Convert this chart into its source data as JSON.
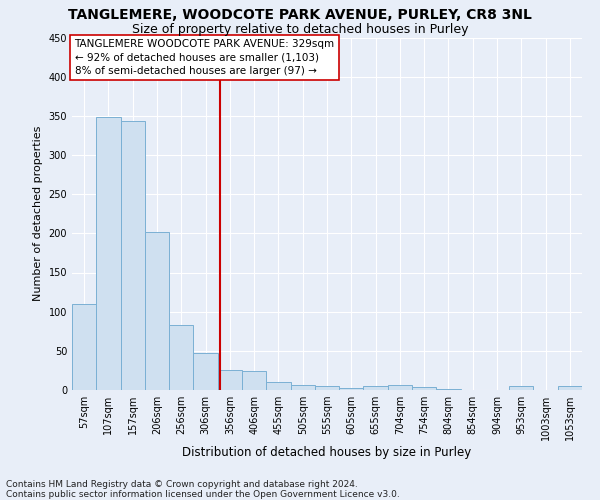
{
  "title": "TANGLEMERE, WOODCOTE PARK AVENUE, PURLEY, CR8 3NL",
  "subtitle": "Size of property relative to detached houses in Purley",
  "xlabel": "Distribution of detached houses by size in Purley",
  "ylabel": "Number of detached properties",
  "bar_labels": [
    "57sqm",
    "107sqm",
    "157sqm",
    "206sqm",
    "256sqm",
    "306sqm",
    "356sqm",
    "406sqm",
    "455sqm",
    "505sqm",
    "555sqm",
    "605sqm",
    "655sqm",
    "704sqm",
    "754sqm",
    "804sqm",
    "854sqm",
    "904sqm",
    "953sqm",
    "1003sqm",
    "1053sqm"
  ],
  "bar_values": [
    110,
    349,
    343,
    202,
    83,
    47,
    25,
    24,
    10,
    7,
    5,
    2,
    5,
    6,
    4,
    1,
    0,
    0,
    5,
    0,
    5
  ],
  "bar_color": "#cfe0f0",
  "bar_edge_color": "#7ab0d4",
  "vline_x": 5.58,
  "vline_color": "#cc0000",
  "annotation_title": "TANGLEMERE WOODCOTE PARK AVENUE: 329sqm",
  "annotation_line1": "← 92% of detached houses are smaller (1,103)",
  "annotation_line2": "8% of semi-detached houses are larger (97) →",
  "annotation_box_facecolor": "#ffffff",
  "annotation_box_edgecolor": "#cc0000",
  "footer1": "Contains HM Land Registry data © Crown copyright and database right 2024.",
  "footer2": "Contains public sector information licensed under the Open Government Licence v3.0.",
  "ylim": [
    0,
    450
  ],
  "background_color": "#e8eef8",
  "grid_color": "#ffffff",
  "title_fontsize": 10,
  "subtitle_fontsize": 9,
  "ylabel_fontsize": 8,
  "xlabel_fontsize": 8.5,
  "tick_fontsize": 7,
  "annotation_fontsize": 7.5,
  "footer_fontsize": 6.5
}
